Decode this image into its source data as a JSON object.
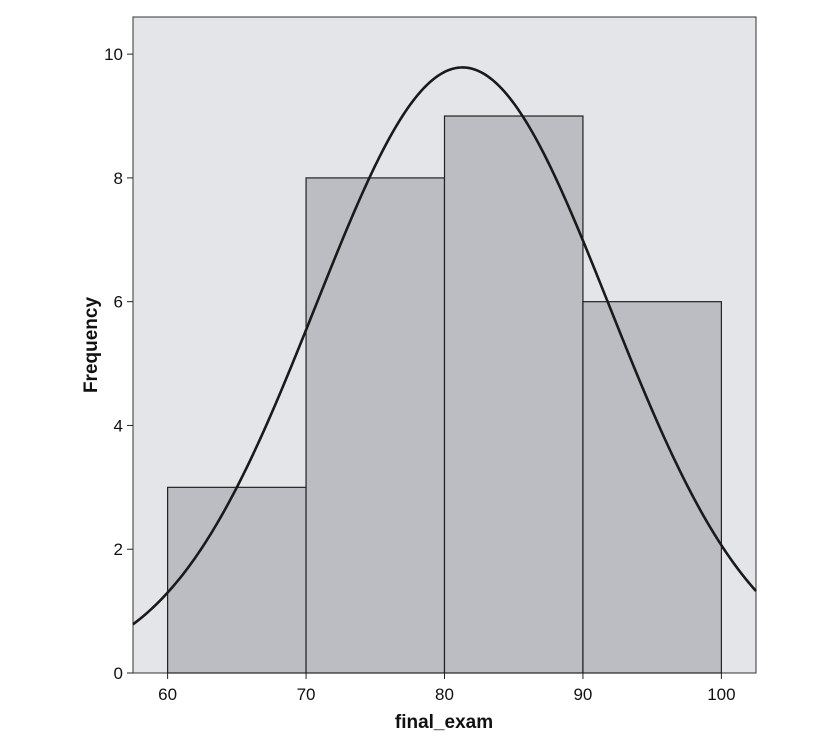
{
  "chart_data": {
    "type": "bar",
    "subtype": "histogram",
    "xlabel": "final_exam",
    "ylabel": "Frequency",
    "xlim": [
      57.5,
      102.5
    ],
    "ylim": [
      0,
      10.6
    ],
    "xticks": [
      60,
      70,
      80,
      90,
      100
    ],
    "yticks": [
      0,
      2,
      4,
      6,
      8,
      10
    ],
    "bins": [
      {
        "from": 60,
        "to": 70,
        "value": 3
      },
      {
        "from": 70,
        "to": 80,
        "value": 8
      },
      {
        "from": 80,
        "to": 90,
        "value": 9
      },
      {
        "from": 90,
        "to": 100,
        "value": 6
      }
    ],
    "normal_curve": {
      "mean": 81.3,
      "sd": 10.6,
      "n": 26,
      "bin_width": 10
    },
    "grid": false,
    "colors": {
      "plot_background": "#e4e5e8",
      "bar_fill": "#bcbdc2",
      "bar_stroke": "#222222",
      "curve": "#1a1a1a"
    }
  }
}
